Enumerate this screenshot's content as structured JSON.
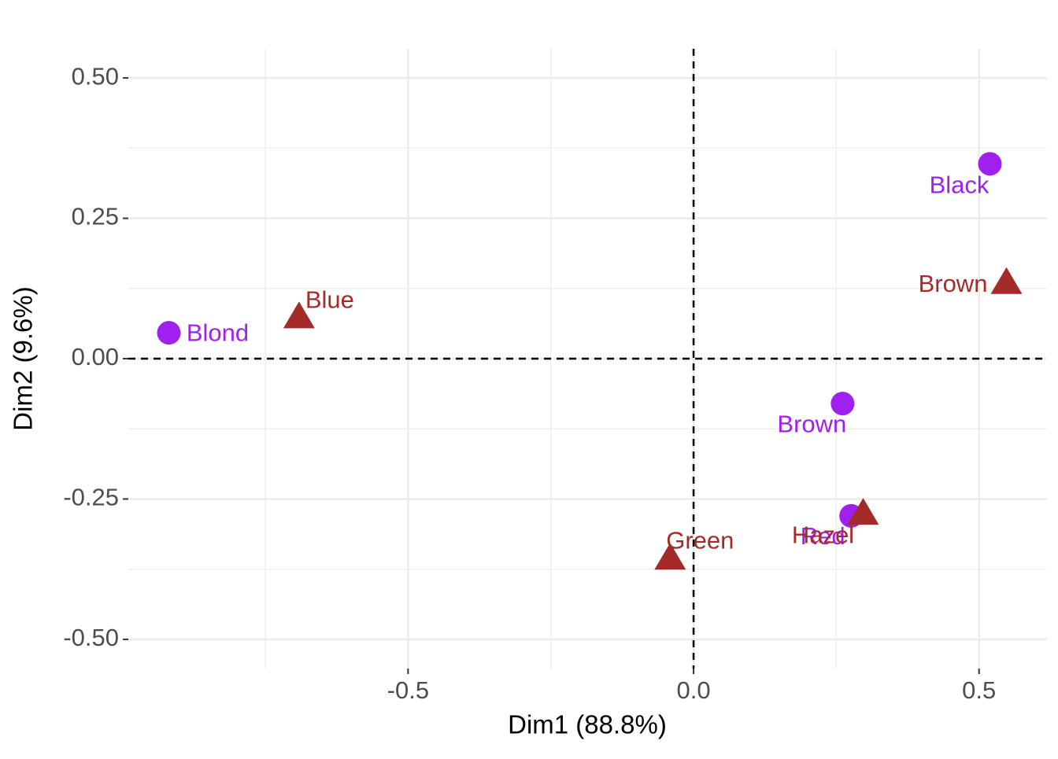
{
  "chart_data": {
    "type": "scatter",
    "xlabel": "Dim1 (88.8%)",
    "ylabel": "Dim2 (9.6%)",
    "xlim": [
      -0.99,
      0.619
    ],
    "ylim": [
      -0.552,
      0.552
    ],
    "xticks": [
      {
        "value": -0.5,
        "label": "-0.5"
      },
      {
        "value": 0,
        "label": "0.0"
      },
      {
        "value": 0.5,
        "label": "0.5"
      }
    ],
    "yticks": [
      {
        "value": 0.5,
        "label": "0.50"
      },
      {
        "value": 0.25,
        "label": "0.25"
      },
      {
        "value": 0,
        "label": "0.00"
      },
      {
        "value": -0.25,
        "label": "-0.25"
      },
      {
        "value": -0.5,
        "label": "-0.50"
      }
    ],
    "xminorticks": [
      -0.75,
      -0.25,
      0.25
    ],
    "yminorticks": [
      0.375,
      0.125,
      -0.125,
      -0.375
    ],
    "grid": true,
    "hline": 0,
    "vline": 0,
    "series": [
      {
        "color": "#a020f0",
        "shape": "circle",
        "labels": [
          "Black",
          "Brown",
          "Red",
          "Blond"
        ],
        "x": [
          0.519,
          0.261,
          0.276,
          -0.919
        ],
        "y": [
          0.347,
          -0.08,
          -0.28,
          0.046
        ]
      },
      {
        "color": "#a52a2a",
        "shape": "triangle",
        "labels": [
          "Brown",
          "Blue",
          "Hazel",
          "Green"
        ],
        "x": [
          0.548,
          -0.691,
          0.297,
          -0.041
        ],
        "y": [
          0.139,
          0.078,
          -0.272,
          -0.352
        ]
      }
    ]
  }
}
